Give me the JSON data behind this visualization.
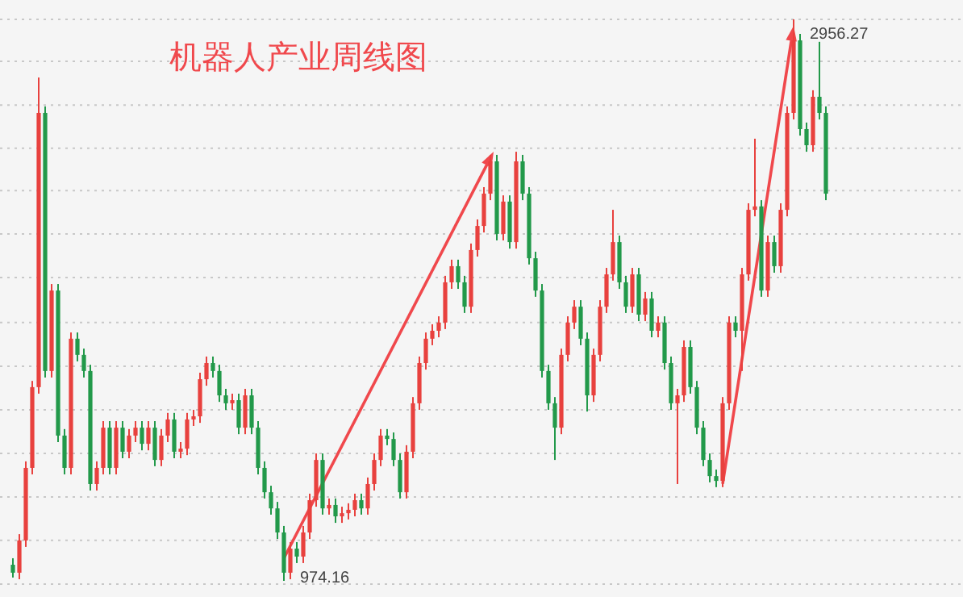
{
  "chart_data": {
    "type": "candlestick",
    "title": "机器人产业周线图",
    "categories": [
      null,
      null,
      null,
      null,
      null,
      null,
      null,
      null,
      null,
      null,
      null,
      null,
      null,
      null,
      null,
      null,
      null,
      null,
      null,
      null,
      null,
      null,
      null,
      null,
      null,
      null,
      null,
      null,
      null,
      null,
      null,
      null,
      null,
      null,
      null,
      null,
      null,
      null,
      null,
      null,
      null,
      null,
      null,
      null,
      null,
      null,
      null,
      null,
      null,
      null,
      null,
      null,
      null,
      null,
      null,
      null,
      null,
      null,
      null,
      null,
      null,
      null,
      null,
      null,
      null,
      null,
      null,
      null,
      null,
      null,
      null,
      null,
      null,
      null,
      null,
      null,
      null,
      null,
      null,
      null,
      null,
      null,
      null,
      null,
      null,
      null,
      null,
      null,
      null,
      null,
      null,
      null,
      null,
      null,
      null,
      null,
      null,
      null,
      null,
      null,
      null,
      null,
      null,
      null,
      null,
      null,
      null,
      null,
      null,
      null,
      null,
      null,
      null,
      null,
      null,
      null,
      null,
      null,
      null,
      null,
      null,
      null,
      null,
      null,
      null,
      null,
      null
    ],
    "colors": [
      "#22994a",
      "#e8413e",
      "#e8413e",
      "#e8413e",
      "#e8413e",
      "#22994a",
      "#e8413e",
      "#22994a",
      "#22994a",
      "#e8413e",
      "#22994a",
      "#22994a",
      "#22994a",
      "#e8413e",
      "#e8413e",
      "#22994a",
      "#e8413e",
      "#22994a",
      "#e8413e",
      "#e8413e",
      "#22994a",
      "#e8413e",
      "#22994a",
      "#e8413e",
      "#e8413e",
      "#22994a",
      "#e8413e",
      "#e8413e",
      "#e8413e",
      "#e8413e",
      "#e8413e",
      "#22994a",
      "#22994a",
      "#22994a",
      "#e8413e",
      "#22994a",
      "#e8413e",
      "#22994a",
      "#22994a",
      "#22994a",
      "#22994a",
      "#22994a",
      "#22994a",
      "#e8413e",
      "#22994a",
      "#e8413e",
      "#e8413e",
      "#e8413e",
      "#22994a",
      "#e8413e",
      "#22994a",
      "#e8413e",
      "#e8413e",
      "#e8413e",
      "#22994a",
      "#e8413e",
      "#e8413e",
      "#e8413e",
      "#22994a",
      "#22994a",
      "#22994a",
      "#e8413e",
      "#e8413e",
      "#e8413e",
      "#e8413e",
      "#e8413e",
      "#e8413e",
      "#e8413e",
      "#e8413e",
      "#22994a",
      "#22994a",
      "#e8413e",
      "#e8413e",
      "#e8413e",
      "#e8413e",
      "#22994a",
      "#e8413e",
      "#22994a",
      "#e8413e",
      "#22994a",
      "#22994a",
      "#22994a",
      "#22994a",
      "#22994a",
      "#22994a",
      "#e8413e",
      "#e8413e",
      "#e8413e",
      "#22994a",
      "#22994a",
      "#e8413e",
      "#e8413e",
      "#e8413e",
      "#e8413e",
      "#22994a",
      "#22994a",
      "#e8413e",
      "#22994a",
      "#e8413e",
      "#22994a",
      "#e8413e",
      "#22994a",
      "#22994a",
      "#e8413e",
      "#e8413e",
      "#22994a",
      "#22994a",
      "#22994a",
      "#22994a",
      "#22994a",
      "#e8413e",
      "#e8413e",
      "#22994a",
      "#e8413e",
      "#e8413e",
      "#e8413e",
      "#22994a",
      "#e8413e",
      "#22994a",
      "#e8413e",
      "#e8413e",
      "#e8413e",
      "#22994a",
      "#22994a",
      "#e8413e",
      "#22994a",
      "#22994a"
    ],
    "yticks": [
      {
        "value": 2956,
        "label": null
      },
      {
        "value": 2808,
        "label": null
      },
      {
        "value": 2654,
        "label": null
      },
      {
        "value": 2501,
        "label": null
      },
      {
        "value": 2352,
        "label": null
      },
      {
        "value": 2199,
        "label": null
      },
      {
        "value": 2045,
        "label": null
      },
      {
        "value": 1886,
        "label": null
      },
      {
        "value": 1732,
        "label": null
      },
      {
        "value": 1578,
        "label": null
      },
      {
        "value": 1424,
        "label": null
      },
      {
        "value": 1270,
        "label": null
      },
      {
        "value": 1117,
        "label": null
      },
      {
        "value": 963,
        "label": null
      }
    ],
    "grid": "y",
    "annotations": [
      "2956.27",
      "974.16"
    ],
    "ohlc": [
      [
        1031,
        1054,
        986,
        1003
      ],
      [
        1003,
        1139,
        980,
        1117
      ],
      [
        1117,
        1396,
        1094,
        1373
      ],
      [
        1373,
        1680,
        1350,
        1658
      ],
      [
        1658,
        2751,
        1635,
        2626
      ],
      [
        2626,
        2649,
        1692,
        1715
      ],
      [
        1715,
        2022,
        1692,
        1999
      ],
      [
        1999,
        2022,
        1464,
        1487
      ],
      [
        1487,
        1510,
        1350,
        1373
      ],
      [
        1373,
        1851,
        1350,
        1829
      ],
      [
        1829,
        1851,
        1749,
        1772
      ],
      [
        1772,
        1794,
        1692,
        1715
      ],
      [
        1715,
        1737,
        1293,
        1316
      ],
      [
        1316,
        1396,
        1293,
        1373
      ],
      [
        1373,
        1538,
        1350,
        1515
      ],
      [
        1515,
        1538,
        1350,
        1373
      ],
      [
        1373,
        1538,
        1350,
        1515
      ],
      [
        1515,
        1538,
        1407,
        1430
      ],
      [
        1430,
        1510,
        1407,
        1487
      ],
      [
        1487,
        1538,
        1464,
        1515
      ],
      [
        1515,
        1538,
        1435,
        1458
      ],
      [
        1458,
        1538,
        1435,
        1515
      ],
      [
        1515,
        1538,
        1379,
        1401
      ],
      [
        1401,
        1510,
        1379,
        1487
      ],
      [
        1487,
        1567,
        1464,
        1544
      ],
      [
        1544,
        1567,
        1407,
        1430
      ],
      [
        1430,
        1464,
        1407,
        1441
      ],
      [
        1441,
        1567,
        1418,
        1544
      ],
      [
        1544,
        1578,
        1521,
        1555
      ],
      [
        1555,
        1709,
        1532,
        1686
      ],
      [
        1686,
        1766,
        1663,
        1743
      ],
      [
        1743,
        1766,
        1692,
        1715
      ],
      [
        1715,
        1737,
        1606,
        1629
      ],
      [
        1629,
        1652,
        1578,
        1601
      ],
      [
        1601,
        1635,
        1578,
        1612
      ],
      [
        1612,
        1635,
        1492,
        1515
      ],
      [
        1515,
        1652,
        1492,
        1629
      ],
      [
        1629,
        1652,
        1492,
        1515
      ],
      [
        1515,
        1538,
        1350,
        1373
      ],
      [
        1373,
        1396,
        1265,
        1287
      ],
      [
        1287,
        1310,
        1208,
        1230
      ],
      [
        1230,
        1253,
        1122,
        1145
      ],
      [
        1145,
        1168,
        974.16,
        1003
      ],
      [
        1003,
        1111,
        980,
        1088
      ],
      [
        1088,
        1111,
        1037,
        1060
      ],
      [
        1060,
        1168,
        1037,
        1145
      ],
      [
        1145,
        1282,
        1122,
        1259
      ],
      [
        1259,
        1424,
        1236,
        1401
      ],
      [
        1401,
        1424,
        1208,
        1230
      ],
      [
        1230,
        1265,
        1208,
        1242
      ],
      [
        1242,
        1265,
        1179,
        1202
      ],
      [
        1202,
        1236,
        1179,
        1213
      ],
      [
        1213,
        1248,
        1191,
        1225
      ],
      [
        1225,
        1282,
        1202,
        1259
      ],
      [
        1259,
        1282,
        1208,
        1230
      ],
      [
        1230,
        1339,
        1208,
        1316
      ],
      [
        1316,
        1424,
        1293,
        1401
      ],
      [
        1401,
        1510,
        1379,
        1487
      ],
      [
        1487,
        1510,
        1453,
        1475
      ],
      [
        1475,
        1498,
        1379,
        1401
      ],
      [
        1401,
        1424,
        1265,
        1287
      ],
      [
        1287,
        1453,
        1265,
        1430
      ],
      [
        1430,
        1623,
        1407,
        1601
      ],
      [
        1601,
        1766,
        1578,
        1743
      ],
      [
        1743,
        1851,
        1720,
        1829
      ],
      [
        1829,
        1880,
        1806,
        1857
      ],
      [
        1857,
        1908,
        1834,
        1886
      ],
      [
        1886,
        2051,
        1863,
        2028
      ],
      [
        2028,
        2108,
        2005,
        2085
      ],
      [
        2085,
        2108,
        2005,
        2028
      ],
      [
        2028,
        2051,
        1920,
        1942
      ],
      [
        1942,
        2165,
        1920,
        2142
      ],
      [
        2142,
        2250,
        2119,
        2227
      ],
      [
        2227,
        2364,
        2204,
        2341
      ],
      [
        2341,
        2478,
        2318,
        2455
      ],
      [
        2455,
        2478,
        2176,
        2199
      ],
      [
        2199,
        2335,
        2176,
        2313
      ],
      [
        2313,
        2335,
        2147,
        2170
      ],
      [
        2170,
        2489,
        2147,
        2455
      ],
      [
        2455,
        2478,
        2318,
        2341
      ],
      [
        2341,
        2364,
        2091,
        2113
      ],
      [
        2113,
        2136,
        1977,
        1999
      ],
      [
        1999,
        2022,
        1692,
        1715
      ],
      [
        1715,
        1737,
        1578,
        1601
      ],
      [
        1601,
        1623,
        1401,
        1515
      ],
      [
        1515,
        1794,
        1492,
        1772
      ],
      [
        1772,
        1908,
        1749,
        1886
      ],
      [
        1886,
        1965,
        1863,
        1942
      ],
      [
        1942,
        1965,
        1806,
        1829
      ],
      [
        1829,
        1851,
        1572,
        1629
      ],
      [
        1629,
        1794,
        1606,
        1772
      ],
      [
        1772,
        1965,
        1749,
        1942
      ],
      [
        1942,
        2079,
        1920,
        2056
      ],
      [
        2056,
        2284,
        2034,
        2170
      ],
      [
        2170,
        2193,
        2005,
        2028
      ],
      [
        2028,
        2051,
        1920,
        1942
      ],
      [
        1942,
        2079,
        1920,
        2056
      ],
      [
        2056,
        2079,
        1891,
        1914
      ],
      [
        1914,
        1994,
        1891,
        1971
      ],
      [
        1971,
        1994,
        1834,
        1857
      ],
      [
        1857,
        1908,
        1834,
        1886
      ],
      [
        1886,
        1908,
        1720,
        1743
      ],
      [
        1743,
        1766,
        1578,
        1601
      ],
      [
        1601,
        1652,
        1316,
        1629
      ],
      [
        1629,
        1823,
        1606,
        1800
      ],
      [
        1800,
        1823,
        1635,
        1658
      ],
      [
        1658,
        1680,
        1492,
        1515
      ],
      [
        1515,
        1538,
        1379,
        1401
      ],
      [
        1401,
        1424,
        1322,
        1344
      ],
      [
        1344,
        1367,
        1305,
        1327
      ],
      [
        1327,
        1623,
        1305,
        1601
      ],
      [
        1601,
        1908,
        1578,
        1886
      ],
      [
        1886,
        1908,
        1834,
        1857
      ],
      [
        1857,
        2079,
        1715,
        2056
      ],
      [
        2056,
        2307,
        2034,
        2284
      ],
      [
        2284,
        2535,
        2261,
        2296
      ],
      [
        2296,
        2318,
        1977,
        1999
      ],
      [
        1999,
        2193,
        1977,
        2170
      ],
      [
        2170,
        2193,
        2062,
        2085
      ],
      [
        2085,
        2307,
        2062,
        2284
      ],
      [
        2284,
        2649,
        2261,
        2626
      ],
      [
        2626,
        2956.27,
        2603,
        2882
      ],
      [
        2882,
        2905,
        2546,
        2569
      ],
      [
        2569,
        2592,
        2489,
        2512
      ],
      [
        2512,
        2706,
        2489,
        2683
      ],
      [
        2683,
        2877,
        2603,
        2626
      ],
      [
        2626,
        2649,
        2318,
        2341
      ]
    ]
  }
}
